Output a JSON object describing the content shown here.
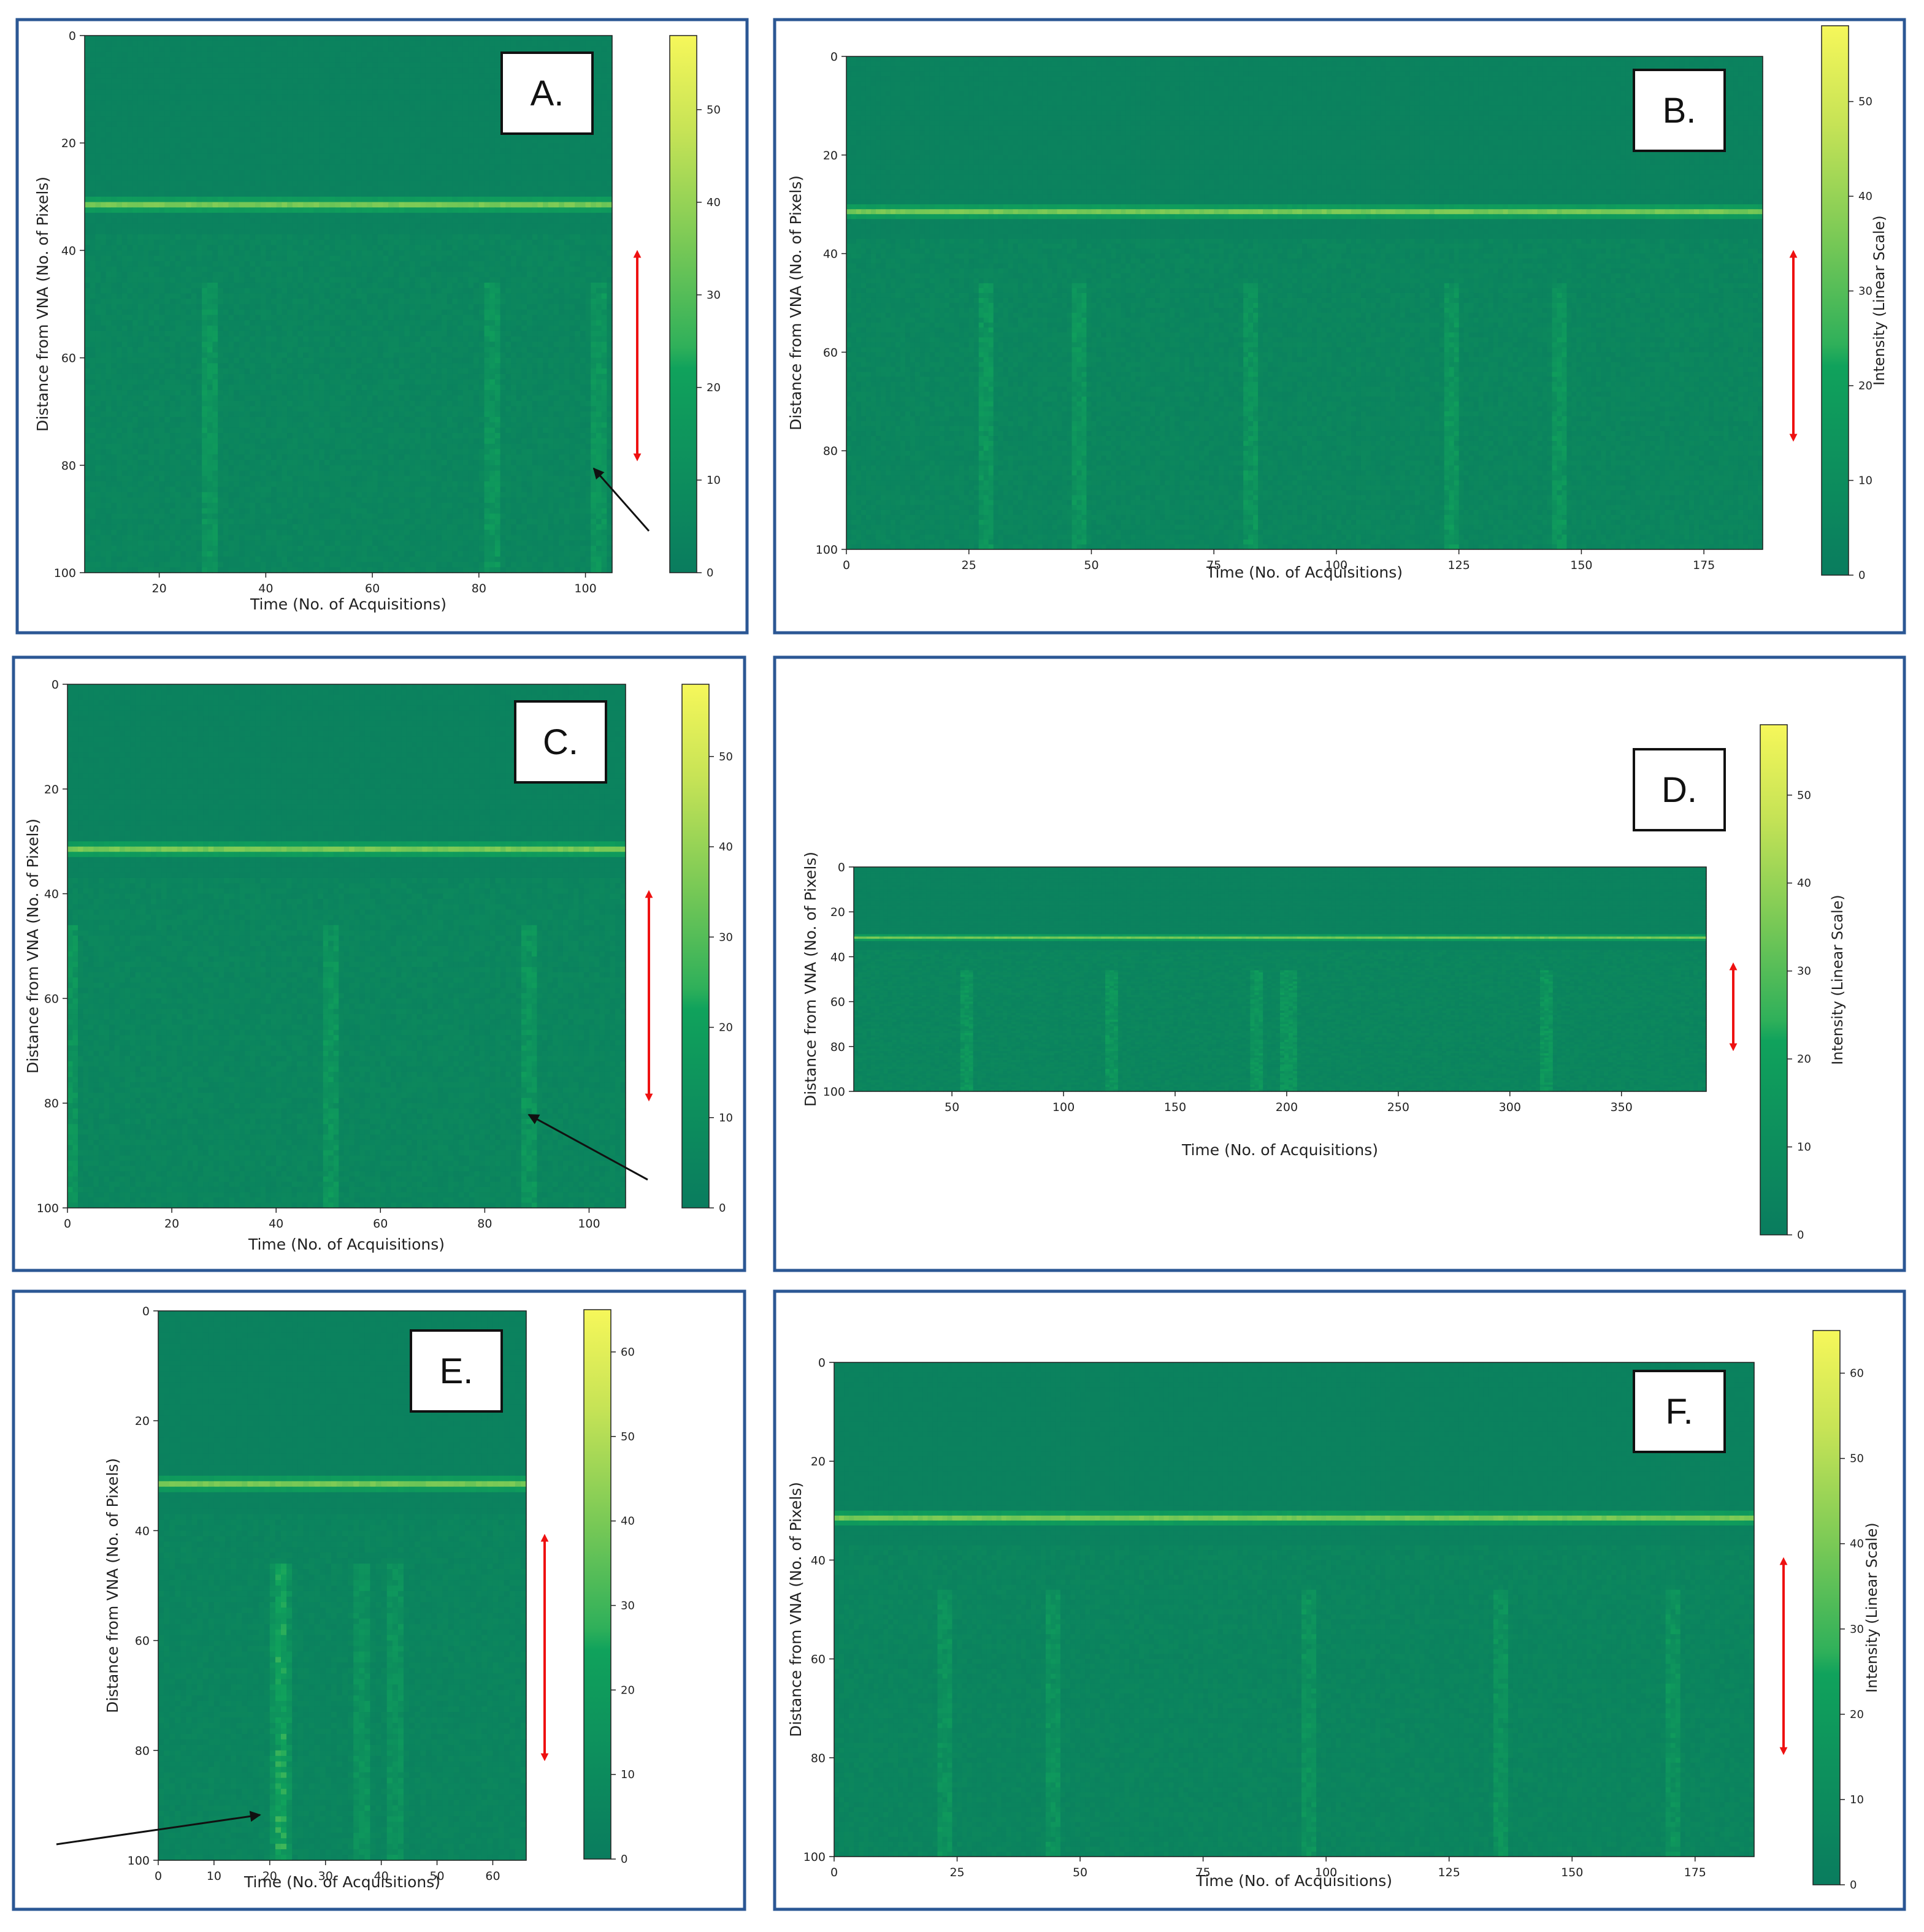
{
  "figure": {
    "panels": [
      {
        "id": "A",
        "letter": "A.",
        "xlabel": "Time (No. of Acquisitions)",
        "ylabel": "Distance from VNA (No. of Pixels)",
        "colorbar_label": "",
        "x_ticks": [
          20,
          40,
          60,
          80,
          100
        ],
        "y_ticks": [
          0,
          20,
          40,
          60,
          80,
          100
        ],
        "cbar_ticks": [
          0,
          10,
          20,
          30,
          40,
          50
        ],
        "has_arrow": true
      },
      {
        "id": "B",
        "letter": "B.",
        "xlabel": "Time (No. of Acquisitions)",
        "ylabel": "Distance from VNA (No. of Pixels)",
        "colorbar_label": "Intensity (Linear Scale)",
        "x_ticks": [
          0,
          25,
          50,
          75,
          100,
          125,
          150,
          175
        ],
        "y_ticks": [
          0,
          20,
          40,
          60,
          80,
          100
        ],
        "cbar_ticks": [
          0,
          10,
          20,
          30,
          40,
          50
        ],
        "has_arrow": false
      },
      {
        "id": "C",
        "letter": "C.",
        "xlabel": "Time (No. of Acquisitions)",
        "ylabel": "Distance from VNA (No. of Pixels)",
        "colorbar_label": "",
        "x_ticks": [
          0,
          20,
          40,
          60,
          80,
          100
        ],
        "y_ticks": [
          0,
          20,
          40,
          60,
          80,
          100
        ],
        "cbar_ticks": [
          0,
          10,
          20,
          30,
          40,
          50
        ],
        "has_arrow": true
      },
      {
        "id": "D",
        "letter": "D.",
        "xlabel": "Time (No. of Acquisitions)",
        "ylabel": "Distance from VNA (No. of Pixels)",
        "colorbar_label": "Intensity (Linear Scale)",
        "x_ticks": [
          50,
          100,
          150,
          200,
          250,
          300,
          350
        ],
        "y_ticks": [
          0,
          20,
          40,
          60,
          80,
          100
        ],
        "cbar_ticks": [
          0,
          10,
          20,
          30,
          40,
          50
        ],
        "has_arrow": false
      },
      {
        "id": "E",
        "letter": "E.",
        "xlabel": "Time (No. of Acquisitions)",
        "ylabel": "Distance from VNA (No. of Pixels)",
        "colorbar_label": "",
        "x_ticks": [
          0,
          10,
          20,
          30,
          40,
          50,
          60
        ],
        "y_ticks": [
          0,
          20,
          40,
          60,
          80,
          100
        ],
        "cbar_ticks": [
          0,
          10,
          20,
          30,
          40,
          50,
          60
        ],
        "has_arrow": true
      },
      {
        "id": "F",
        "letter": "F.",
        "xlabel": "Time (No. of Acquisitions)",
        "ylabel": "Distance from VNA (No. of Pixels)",
        "colorbar_label": "Intensity (Linear Scale)",
        "x_ticks": [
          0,
          25,
          50,
          75,
          100,
          125,
          150,
          175
        ],
        "y_ticks": [
          0,
          20,
          40,
          60,
          80,
          100
        ],
        "cbar_ticks": [
          0,
          10,
          20,
          30,
          40,
          50,
          60
        ],
        "has_arrow": false
      }
    ],
    "colors": {
      "frame": "#2b5794",
      "background_green": "#0c8a64",
      "stripe_green": "#56c768",
      "red_arrow": "#ee1111",
      "black_arrow": "#111111",
      "colormap_low": "#0a8060",
      "colormap_mid": "#1ab45a",
      "colormap_high": "#f4f45a"
    }
  },
  "chart_data": [
    {
      "type": "heatmap",
      "panel": "A.",
      "xlabel": "Time (No. of Acquisitions)",
      "ylabel": "Distance from VNA (No. of Pixels)",
      "xlim": [
        6,
        105
      ],
      "ylim": [
        100,
        0
      ],
      "color_range": [
        0,
        58
      ],
      "stripe_row": 31,
      "stripe_value": 36,
      "background_value": 3,
      "disturbance_rows": [
        37,
        100
      ],
      "bright_columns": [
        29,
        82,
        102
      ]
    },
    {
      "type": "heatmap",
      "panel": "B.",
      "xlabel": "Time (No. of Acquisitions)",
      "ylabel": "Distance from VNA (No. of Pixels)",
      "colorbar_label": "Intensity (Linear Scale)",
      "xlim": [
        0,
        187
      ],
      "ylim": [
        100,
        0
      ],
      "color_range": [
        0,
        58
      ],
      "stripe_row": 31,
      "stripe_value": 36,
      "background_value": 3,
      "disturbance_rows": [
        37,
        100
      ],
      "bright_columns": [
        28,
        47,
        82,
        123,
        145
      ]
    },
    {
      "type": "heatmap",
      "panel": "C.",
      "xlabel": "Time (No. of Acquisitions)",
      "ylabel": "Distance from VNA (No. of Pixels)",
      "xlim": [
        0,
        107
      ],
      "ylim": [
        100,
        0
      ],
      "color_range": [
        0,
        58
      ],
      "stripe_row": 31,
      "stripe_value": 36,
      "background_value": 3,
      "disturbance_rows": [
        37,
        100
      ],
      "bright_columns": [
        0,
        50,
        88
      ]
    },
    {
      "type": "heatmap",
      "panel": "D.",
      "xlabel": "Time (No. of Acquisitions)",
      "ylabel": "Distance from VNA (No. of Pixels)",
      "colorbar_label": "Intensity (Linear Scale)",
      "xlim": [
        6,
        388
      ],
      "ylim": [
        100,
        0
      ],
      "color_range": [
        0,
        58
      ],
      "stripe_row": 31,
      "stripe_value": 36,
      "background_value": 3,
      "disturbance_rows": [
        37,
        100
      ],
      "bright_columns": [
        55,
        120,
        185,
        200,
        315
      ]
    },
    {
      "type": "heatmap",
      "panel": "E.",
      "xlabel": "Time (No. of Acquisitions)",
      "ylabel": "Distance from VNA (No. of Pixels)",
      "xlim": [
        0,
        66
      ],
      "ylim": [
        100,
        0
      ],
      "color_range": [
        0,
        65
      ],
      "stripe_row": 31,
      "stripe_value": 40,
      "background_value": 3,
      "disturbance_rows": [
        37,
        100
      ],
      "bright_columns": [
        21,
        22,
        36,
        42
      ]
    },
    {
      "type": "heatmap",
      "panel": "F.",
      "xlabel": "Time (No. of Acquisitions)",
      "ylabel": "Distance from VNA (No. of Pixels)",
      "colorbar_label": "Intensity (Linear Scale)",
      "xlim": [
        0,
        187
      ],
      "ylim": [
        100,
        0
      ],
      "color_range": [
        0,
        65
      ],
      "stripe_row": 31,
      "stripe_value": 40,
      "background_value": 3,
      "disturbance_rows": [
        37,
        100
      ],
      "bright_columns": [
        22,
        44,
        96,
        135,
        170
      ]
    }
  ]
}
